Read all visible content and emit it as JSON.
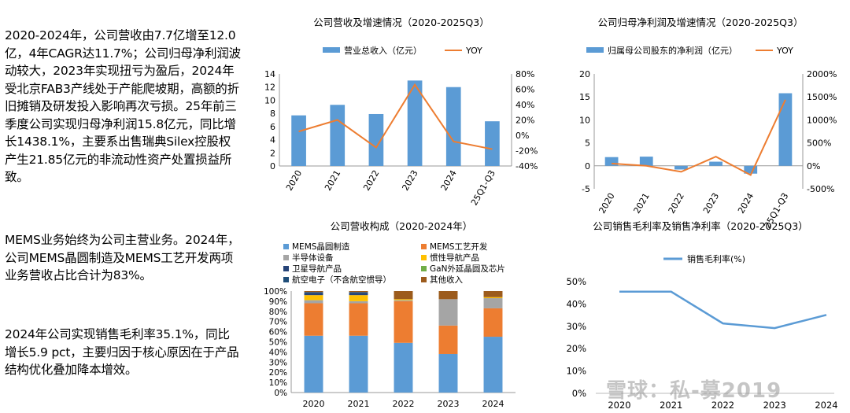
{
  "text": {
    "p1": "2020-2024年，公司营收由7.7亿增至12.0亿，4年CAGR达11.7%；公司归母净利润波动较大，2023年实现扭亏为盈后，2024年受北京FAB3产线处于产能爬坡期，高额的折旧摊销及研发投入影响再次亏损。25年前三季度公司实现归母净利润15.8亿元，同比增长1438.1%，主要系出售瑞典Silex控股权产生21.85亿元的非流动性资产处置损益所致。",
    "p2": "MEMS业务始终为公司主营业务。2024年，公司MEMS晶圆制造及MEMS工艺开发两项业务营收占比合计为83%。",
    "p3": "2024年公司实现销售毛利率35.1%，同比增长5.9 pct，主要归因于核心原因在于产品结构优化叠加降本增效。"
  },
  "watermark": "雪球：私-募2019",
  "chart_data": [
    {
      "type": "bar",
      "title": "公司营收及增速情况（2020-2025Q3）",
      "categories": [
        "2020",
        "2021",
        "2022",
        "2023",
        "2024",
        "25Q1-Q3"
      ],
      "series": [
        {
          "name": "营业总收入（亿元）",
          "kind": "bar",
          "axis": "left",
          "values": [
            7.7,
            9.3,
            7.9,
            13.0,
            12.0,
            6.8
          ]
        },
        {
          "name": "YOY",
          "kind": "line",
          "axis": "right",
          "values": [
            5,
            20,
            -16,
            66,
            -8,
            -18
          ]
        }
      ],
      "ylim": [
        0,
        14
      ],
      "yticks": [
        0,
        2,
        4,
        6,
        8,
        10,
        12,
        14
      ],
      "y2lim": [
        -40,
        80
      ],
      "y2ticks": [
        "-40%",
        "-20%",
        "0%",
        "20%",
        "40%",
        "60%",
        "80%"
      ],
      "bar_color": "#5b9bd5",
      "line_color": "#ed7d31",
      "legend": "top"
    },
    {
      "type": "bar",
      "title": "公司归母净利润及增速情况（2020-2025Q3）",
      "categories": [
        "2020",
        "2021",
        "2022",
        "2023",
        "2024",
        "25Q1-Q3"
      ],
      "series": [
        {
          "name": "归属母公司股东的净利润（亿元）",
          "kind": "bar",
          "axis": "left",
          "values": [
            1.9,
            2.0,
            -0.8,
            0.9,
            -1.7,
            15.8
          ]
        },
        {
          "name": "YOY",
          "kind": "line",
          "axis": "right",
          "values": [
            50,
            0,
            -130,
            200,
            -200,
            1438
          ]
        }
      ],
      "ylim": [
        -5,
        20
      ],
      "yticks": [
        -5,
        0,
        5,
        10,
        15,
        20
      ],
      "y2lim": [
        -500,
        2000
      ],
      "y2ticks": [
        "-500%",
        "0%",
        "500%",
        "1000%",
        "1500%",
        "2000%"
      ],
      "bar_color": "#5b9bd5",
      "line_color": "#ed7d31",
      "legend": "top"
    },
    {
      "type": "bar",
      "stacked": true,
      "title": "公司营收构成（2020-2024年）",
      "categories": [
        "2020",
        "2021",
        "2022",
        "2023",
        "2024"
      ],
      "series": [
        {
          "name": "MEMS晶圆制造",
          "color": "#5b9bd5",
          "values": [
            56,
            56,
            49,
            38,
            55
          ]
        },
        {
          "name": "MEMS工艺开发",
          "color": "#ed7d31",
          "values": [
            32,
            32,
            41,
            28,
            28
          ]
        },
        {
          "name": "半导体设备",
          "color": "#a5a5a5",
          "values": [
            3,
            2,
            1,
            26,
            10
          ]
        },
        {
          "name": "惯性导航产品",
          "color": "#ffc000",
          "values": [
            5,
            6,
            1,
            0,
            1
          ]
        },
        {
          "name": "卫星导航产品",
          "color": "#264478",
          "values": [
            2,
            2,
            0,
            0,
            0
          ]
        },
        {
          "name": "GaN外延晶圆及芯片",
          "color": "#70ad47",
          "values": [
            0,
            0,
            0,
            0,
            0
          ]
        },
        {
          "name": "航空电子（不含航空惯导）",
          "color": "#1f4e79",
          "values": [
            1,
            1,
            0,
            0,
            0
          ]
        },
        {
          "name": "其他收入",
          "color": "#9c5b1c",
          "values": [
            1,
            1,
            8,
            8,
            6
          ]
        }
      ],
      "ylim": [
        0,
        100
      ],
      "yticks": [
        "0%",
        "10%",
        "20%",
        "30%",
        "40%",
        "50%",
        "60%",
        "70%",
        "80%",
        "90%",
        "100%"
      ],
      "legend": "top"
    },
    {
      "type": "line",
      "title": "公司销售毛利率及销售净利率（2020-2025Q3）",
      "categories": [
        "2020",
        "2021",
        "2022",
        "2023",
        "2024"
      ],
      "series": [
        {
          "name": "销售毛利率(%)",
          "color": "#5b9bd5",
          "values": [
            45.5,
            45.5,
            31.3,
            29.2,
            35.1
          ]
        }
      ],
      "ylim": [
        0,
        50
      ],
      "yticks": [
        "0%",
        "10%",
        "20%",
        "30%",
        "40%",
        "50%"
      ],
      "legend": "top"
    }
  ]
}
